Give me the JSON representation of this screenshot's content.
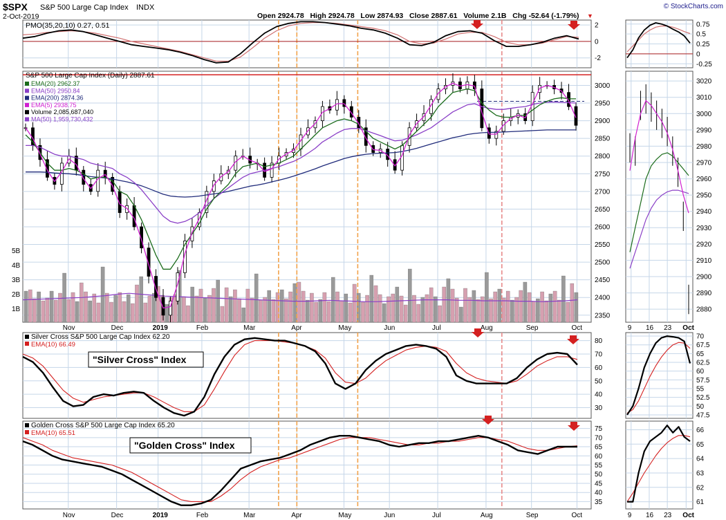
{
  "header": {
    "symbol": "$SPX",
    "name": "S&P 500 Large Cap Index",
    "exchange": "INDX",
    "date": "2-Oct-2019",
    "quote": "Open 2924.78   High 2924.78   Low 2874.93   Close 2887.61   Volume 2.1B   Chg -52.64 (-1.79%)",
    "watermark": "© StockCharts.com",
    "down_marker": "▼"
  },
  "colors": {
    "price": "#000000",
    "ema20": "#1a6b1a",
    "ema50": "#8a3fc7",
    "ema200": "#1f2a7a",
    "ema5": "#d01fd0",
    "vol_up": "#d6a0b0",
    "vol_down": "#9a9a9a",
    "signal_red": "#d42020",
    "dashed_orange": "#f2a24a",
    "dashed_pink": "#e88a8a",
    "grid": "#c5d6e8",
    "panel_border": "#555555"
  },
  "chart_data": [
    {
      "id": "pmo",
      "type": "line",
      "legend_title": "PMO(35,20,10) 0.27, 0.51",
      "legend_value_2": "0.51",
      "series": [
        {
          "values": [
            0.4,
            0.6,
            1.0,
            1.3,
            1.4,
            1.2,
            0.8,
            0.4,
            0.0,
            -0.4,
            -0.6,
            -0.8,
            -1.0,
            -1.3,
            -1.7,
            -2.2,
            -2.6,
            -2.5,
            -1.5,
            -0.2,
            1.0,
            1.8,
            2.2,
            2.4,
            2.4,
            2.3,
            2.1,
            1.9,
            1.6,
            1.4,
            1.0,
            0.4,
            -0.4,
            -0.5,
            -0.1,
            0.7,
            1.2,
            1.3,
            1.0,
            0.1,
            -0.6,
            -0.6,
            -0.4,
            -0.1,
            0.4,
            0.7,
            0.3
          ]
        },
        {
          "values": [
            0.8,
            0.9,
            1.1,
            1.2,
            1.3,
            1.2,
            1.0,
            0.7,
            0.4,
            0.0,
            -0.3,
            -0.6,
            -0.9,
            -1.2,
            -1.6,
            -2.0,
            -2.4,
            -2.4,
            -1.9,
            -0.8,
            0.4,
            1.3,
            1.9,
            2.2,
            2.3,
            2.3,
            2.2,
            2.0,
            1.8,
            1.6,
            1.3,
            0.8,
            0.0,
            -0.3,
            -0.2,
            0.3,
            0.9,
            1.1,
            1.1,
            0.6,
            -0.1,
            -0.4,
            -0.4,
            -0.2,
            0.2,
            0.6,
            0.5
          ]
        }
      ],
      "yticks": [
        -2,
        0,
        2
      ],
      "ylim": [
        -3.2,
        2.6
      ],
      "zero_line": 0,
      "inset": {
        "yticks": [
          0.75,
          0.5,
          0.25,
          0.0,
          -0.25
        ],
        "ylim": [
          -0.35,
          0.85
        ],
        "series": [
          {
            "values": [
              -0.1,
              0.1,
              0.4,
              0.6,
              0.72,
              0.78,
              0.75,
              0.7,
              0.62,
              0.55,
              0.45,
              0.27
            ]
          },
          {
            "values": [
              0.05,
              0.2,
              0.35,
              0.5,
              0.6,
              0.67,
              0.7,
              0.7,
              0.67,
              0.62,
              0.56,
              0.51
            ]
          }
        ]
      }
    },
    {
      "id": "price",
      "type": "candlestick",
      "title": "S&P 500 Large Cap Index (Daily) 2887.61",
      "legend": [
        {
          "label": "EMA(20) 2962.37",
          "color_key": "ema20"
        },
        {
          "label": "EMA(50) 2950.84",
          "color_key": "ema50"
        },
        {
          "label": "EMA(200) 2874.36",
          "color_key": "ema200"
        },
        {
          "label": "EMA(5) 2938.75",
          "color_key": "ema5"
        },
        {
          "label": "Volume 2,085,687,040",
          "color_key": "price"
        },
        {
          "label": "MA(50) 1,959,730,432",
          "color_key": "ema50"
        }
      ],
      "yticks": [
        3000,
        2950,
        2900,
        2850,
        2800,
        2750,
        2700,
        2650,
        2600,
        2550,
        2500,
        2450,
        2400,
        2350
      ],
      "ylim": [
        2330,
        3040
      ],
      "resistance_line": 3030,
      "closes": [
        2880,
        2830,
        2790,
        2740,
        2720,
        2780,
        2800,
        2760,
        2720,
        2700,
        2760,
        2740,
        2700,
        2640,
        2660,
        2600,
        2540,
        2460,
        2400,
        2350,
        2390,
        2470,
        2560,
        2600,
        2640,
        2700,
        2730,
        2750,
        2760,
        2800,
        2800,
        2780,
        2780,
        2740,
        2780,
        2800,
        2810,
        2820,
        2860,
        2880,
        2900,
        2940,
        2930,
        2960,
        2940,
        2910,
        2880,
        2830,
        2810,
        2820,
        2790,
        2760,
        2830,
        2880,
        2900,
        2920,
        2960,
        2990,
        3000,
        3010,
        2990,
        3010,
        2990,
        2880,
        2850,
        2870,
        2900,
        2910,
        2920,
        2900,
        2980,
        3000,
        3000,
        2990,
        2980,
        2940,
        2887
      ],
      "ema20": [
        2860,
        2840,
        2810,
        2780,
        2760,
        2760,
        2765,
        2760,
        2750,
        2735,
        2740,
        2740,
        2730,
        2700,
        2690,
        2660,
        2620,
        2570,
        2520,
        2480,
        2480,
        2510,
        2550,
        2580,
        2610,
        2650,
        2680,
        2700,
        2720,
        2750,
        2770,
        2775,
        2780,
        2770,
        2775,
        2780,
        2790,
        2800,
        2820,
        2840,
        2860,
        2880,
        2890,
        2900,
        2905,
        2900,
        2890,
        2870,
        2850,
        2840,
        2830,
        2820,
        2830,
        2850,
        2870,
        2890,
        2910,
        2940,
        2960,
        2980,
        2985,
        2990,
        2985,
        2950,
        2930,
        2915,
        2910,
        2910,
        2915,
        2915,
        2930,
        2945,
        2955,
        2962,
        2965,
        2962,
        2962
      ],
      "ema50": [
        2830,
        2830,
        2825,
        2815,
        2805,
        2800,
        2800,
        2795,
        2790,
        2780,
        2775,
        2770,
        2765,
        2750,
        2740,
        2725,
        2705,
        2680,
        2655,
        2630,
        2615,
        2610,
        2615,
        2625,
        2640,
        2660,
        2680,
        2695,
        2710,
        2725,
        2740,
        2750,
        2755,
        2760,
        2765,
        2770,
        2778,
        2785,
        2795,
        2808,
        2822,
        2840,
        2852,
        2865,
        2875,
        2878,
        2878,
        2872,
        2865,
        2858,
        2850,
        2843,
        2845,
        2852,
        2860,
        2870,
        2880,
        2895,
        2910,
        2925,
        2935,
        2945,
        2948,
        2940,
        2935,
        2932,
        2932,
        2935,
        2938,
        2940,
        2946,
        2950,
        2952,
        2953,
        2952,
        2951,
        2950
      ],
      "ema200": [
        2755,
        2755,
        2755,
        2754,
        2752,
        2751,
        2750,
        2748,
        2745,
        2742,
        2740,
        2738,
        2735,
        2731,
        2727,
        2722,
        2716,
        2708,
        2700,
        2692,
        2687,
        2685,
        2684,
        2685,
        2687,
        2690,
        2693,
        2696,
        2700,
        2705,
        2710,
        2715,
        2718,
        2722,
        2727,
        2732,
        2737,
        2743,
        2750,
        2757,
        2764,
        2772,
        2779,
        2786,
        2793,
        2798,
        2802,
        2805,
        2807,
        2808,
        2809,
        2810,
        2813,
        2817,
        2822,
        2828,
        2834,
        2840,
        2846,
        2852,
        2856,
        2861,
        2864,
        2866,
        2867,
        2867,
        2868,
        2869,
        2870,
        2871,
        2872,
        2873,
        2874,
        2874,
        2874,
        2874,
        2874
      ],
      "volume_ma": [
        0.48,
        0.49,
        0.5,
        0.51,
        0.52,
        0.53,
        0.55,
        0.57,
        0.6,
        0.62,
        0.6,
        0.58,
        0.56,
        0.55,
        0.54,
        0.53,
        0.52,
        0.51,
        0.5,
        0.49,
        0.48,
        0.47,
        0.46,
        0.45,
        0.45,
        0.46,
        0.47,
        0.46,
        0.45,
        0.44,
        0.44,
        0.45,
        0.46,
        0.47,
        0.48,
        0.48,
        0.48,
        0.47,
        0.47,
        0.46,
        0.46,
        0.46,
        0.45,
        0.45,
        0.44,
        0.45,
        0.46,
        0.48
      ],
      "volume_axis": [
        "5B",
        "4B",
        "3B",
        "2B",
        "1B"
      ],
      "events": {
        "orange_dashed_index": [
          12.6,
          13.5,
          16.5
        ],
        "pink_dashed_index": [
          23.6
        ]
      }
    },
    {
      "id": "silver",
      "type": "line",
      "legend_title": "Silver Cross S&P 500 Large Cap Index 62.20",
      "legend_ema": "EMA(10) 66.49",
      "annotation": "\"Silver Cross\" Index",
      "yticks": [
        80,
        70,
        60,
        50,
        40,
        30
      ],
      "ylim": [
        22,
        86
      ],
      "series": [
        {
          "values": [
            68,
            64,
            56,
            45,
            35,
            31,
            32,
            38,
            40,
            39,
            41,
            42,
            41,
            35,
            30,
            26,
            24,
            27,
            38,
            55,
            68,
            77,
            81,
            82,
            81,
            80,
            80,
            78,
            76,
            72,
            63,
            48,
            44,
            48,
            58,
            65,
            70,
            73,
            76,
            77,
            76,
            74,
            68,
            54,
            50,
            48,
            48,
            48,
            48,
            52,
            60,
            66,
            70,
            71,
            70,
            62
          ]
        },
        {
          "values": [
            70,
            67,
            61,
            52,
            43,
            37,
            34,
            36,
            38,
            39,
            40,
            41,
            41,
            38,
            34,
            30,
            27,
            27,
            32,
            44,
            57,
            69,
            77,
            80,
            80,
            80,
            79,
            78,
            76,
            73,
            67,
            56,
            49,
            48,
            52,
            59,
            65,
            69,
            73,
            75,
            76,
            75,
            72,
            63,
            56,
            52,
            50,
            49,
            48,
            50,
            55,
            61,
            65,
            68,
            68,
            66
          ]
        }
      ],
      "inset": {
        "yticks": [
          70.0,
          67.5,
          65.0,
          62.5,
          60.0,
          57.5,
          55.0,
          52.5,
          50.0,
          47.5
        ],
        "ylim": [
          46.5,
          71
        ],
        "series": [
          {
            "values": [
              47.5,
              50,
              55,
              61,
              65,
              68,
              69.5,
              70,
              69.8,
              69.5,
              68.5,
              62.2
            ]
          },
          {
            "values": [
              48,
              49,
              51.5,
              55,
              58.5,
              61.5,
              64,
              66,
              67.5,
              68.2,
              68,
              66.5
            ]
          }
        ]
      }
    },
    {
      "id": "golden",
      "type": "line",
      "legend_title": "Golden Cross S&P 500 Large Cap Index 65.20",
      "legend_ema": "EMA(10) 65.51",
      "annotation": "\"Golden Cross\" Index",
      "yticks": [
        75,
        70,
        65,
        60,
        55,
        50,
        45,
        40,
        35
      ],
      "ylim": [
        31,
        79
      ],
      "series": [
        {
          "values": [
            68,
            66,
            63,
            60,
            58,
            57,
            56,
            55,
            54,
            52,
            50,
            47,
            44,
            41,
            38,
            35,
            33,
            33,
            34,
            36,
            41,
            47,
            53,
            55,
            57,
            58,
            59,
            61,
            63,
            66,
            68,
            70,
            71,
            71,
            70,
            69,
            68,
            66,
            65,
            66,
            67,
            67,
            68,
            68,
            69,
            70,
            71,
            70,
            68,
            66,
            63,
            62,
            61,
            63,
            65,
            65,
            65
          ]
        },
        {
          "values": [
            70,
            68,
            66,
            63,
            61,
            59,
            58,
            57,
            56,
            55,
            53,
            51,
            48,
            45,
            42,
            39,
            36,
            35,
            35,
            35,
            38,
            42,
            47,
            51,
            54,
            56,
            58,
            59,
            61,
            63,
            65,
            67,
            69,
            70,
            70,
            70,
            69,
            68,
            67,
            66,
            66,
            67,
            67,
            68,
            68,
            69,
            70,
            70,
            69,
            68,
            66,
            64,
            63,
            63,
            64,
            65,
            65.5
          ]
        }
      ],
      "inset": {
        "yticks": [
          66,
          65,
          64,
          63,
          62,
          61
        ],
        "ylim": [
          60.5,
          66.6
        ],
        "series": [
          {
            "values": [
              61,
              61,
              63,
              64.5,
              65.2,
              65.5,
              65.8,
              66.3,
              65.8,
              66.2,
              65.5,
              65.2
            ]
          },
          {
            "values": [
              61,
              61.6,
              62.3,
              63,
              63.6,
              64.2,
              64.7,
              65.1,
              65.4,
              65.6,
              65.6,
              65.51
            ]
          }
        ]
      }
    }
  ],
  "x_axis": {
    "main_labels": [
      "Nov",
      "Dec",
      "2019",
      "Feb",
      "Mar",
      "Apr",
      "May",
      "Jun",
      "Jul",
      "Aug",
      "Sep",
      "Oct"
    ],
    "inset_labels": [
      "9",
      "16",
      "23",
      "Oct"
    ]
  }
}
